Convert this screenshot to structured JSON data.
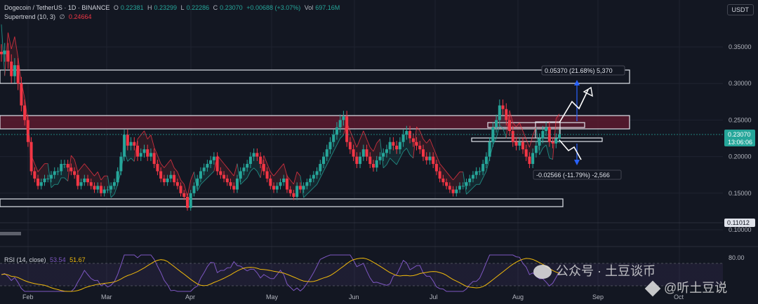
{
  "header": {
    "symbol": "Dogecoin / TetherUS · 1D · BINANCE",
    "o_label": "O",
    "o_value": "0.22381",
    "h_label": "H",
    "h_value": "0.23299",
    "l_label": "L",
    "l_value": "0.22286",
    "c_label": "C",
    "c_value": "0.23070",
    "change": "+0.00688 (+3.07%)",
    "vol_label": "Vol",
    "vol_value": "697.16M",
    "indicator": "Supertrend (10, 3)",
    "indicator_symbol": "∅",
    "indicator_value": "0.24664"
  },
  "currency_button": "USDT",
  "price_label": {
    "value": "0.23070",
    "countdown": "13:06:06"
  },
  "low_label": "0.11012",
  "rsi": {
    "label": "RSI (14, close)",
    "value1": "53.54",
    "value2": "51.67",
    "level": "80.00"
  },
  "measure_up": "0.05370 (21.68%) 5,370",
  "measure_down": "-0.02566 (-11.79%) -2,566",
  "watermark": {
    "wechat": "公众号 · 土豆谈币",
    "binance": "@听土豆说"
  },
  "colors": {
    "bg": "#131722",
    "up": "#26a69a",
    "down": "#f23645",
    "rsi": "#7e57c2",
    "rsi_ma": "#f0b90b",
    "resist_zone": "#5c1a2e"
  },
  "chart_data": {
    "type": "candlestick",
    "y_ticks": [
      "0.35000",
      "0.30000",
      "0.25000",
      "0.20000",
      "0.15000",
      "0.10000"
    ],
    "x_ticks": [
      "Feb",
      "Mar",
      "Apr",
      "May",
      "Jun",
      "Jul",
      "Aug",
      "Sep",
      "Oct"
    ],
    "ylim": [
      0.095,
      0.4
    ],
    "closes": [
      0.34,
      0.345,
      0.33,
      0.31,
      0.325,
      0.3,
      0.27,
      0.25,
      0.22,
      0.18,
      0.17,
      0.16,
      0.165,
      0.17,
      0.17,
      0.175,
      0.18,
      0.18,
      0.19,
      0.19,
      0.185,
      0.18,
      0.175,
      0.16,
      0.165,
      0.17,
      0.165,
      0.16,
      0.155,
      0.16,
      0.15,
      0.155,
      0.155,
      0.16,
      0.165,
      0.18,
      0.2,
      0.23,
      0.215,
      0.22,
      0.215,
      0.2,
      0.205,
      0.21,
      0.2,
      0.205,
      0.19,
      0.18,
      0.17,
      0.165,
      0.17,
      0.175,
      0.165,
      0.16,
      0.15,
      0.145,
      0.13,
      0.15,
      0.16,
      0.17,
      0.18,
      0.185,
      0.19,
      0.195,
      0.2,
      0.18,
      0.175,
      0.17,
      0.165,
      0.16,
      0.155,
      0.17,
      0.18,
      0.185,
      0.19,
      0.2,
      0.205,
      0.2,
      0.19,
      0.18,
      0.17,
      0.16,
      0.155,
      0.16,
      0.165,
      0.17,
      0.155,
      0.15,
      0.145,
      0.16,
      0.155,
      0.16,
      0.165,
      0.17,
      0.175,
      0.18,
      0.19,
      0.2,
      0.21,
      0.22,
      0.23,
      0.24,
      0.25,
      0.255,
      0.22,
      0.21,
      0.2,
      0.19,
      0.2,
      0.21,
      0.2,
      0.19,
      0.185,
      0.195,
      0.2,
      0.205,
      0.21,
      0.22,
      0.215,
      0.21,
      0.22,
      0.23,
      0.235,
      0.225,
      0.22,
      0.215,
      0.21,
      0.2,
      0.195,
      0.2,
      0.19,
      0.18,
      0.17,
      0.165,
      0.16,
      0.155,
      0.15,
      0.155,
      0.16,
      0.16,
      0.165,
      0.17,
      0.175,
      0.18,
      0.18,
      0.19,
      0.2,
      0.22,
      0.24,
      0.25,
      0.27,
      0.265,
      0.25,
      0.235,
      0.22,
      0.215,
      0.22,
      0.21,
      0.2,
      0.19,
      0.205,
      0.215,
      0.225,
      0.235,
      0.24,
      0.22,
      0.218,
      0.225,
      0.2307
    ]
  }
}
